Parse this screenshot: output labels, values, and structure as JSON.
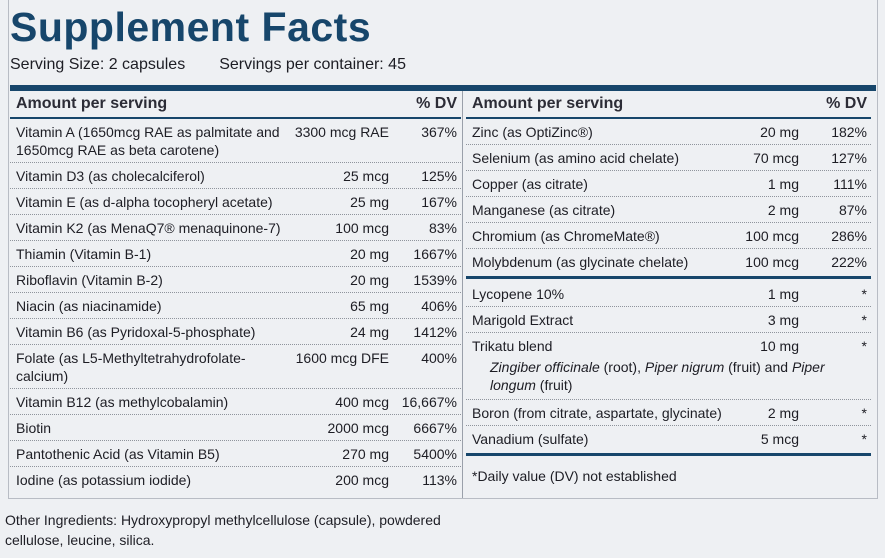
{
  "header": {
    "title": "Supplement Facts",
    "serving_size": "Serving Size:  2 capsules",
    "servings_per_container": "Servings per container:  45"
  },
  "left_column": {
    "headers": [
      "Amount per serving",
      "% DV"
    ],
    "rows": [
      {
        "name": "Vitamin A (1650mcg RAE as palmitate and 1650mcg RAE as beta carotene)",
        "amount": "3300 mcg RAE",
        "dv": "367%"
      },
      {
        "name": "Vitamin D3 (as cholecalciferol)",
        "amount": "25 mcg",
        "dv": "125%"
      },
      {
        "name": "Vitamin E (as d-alpha tocopheryl acetate)",
        "amount": "25 mg",
        "dv": "167%"
      },
      {
        "name": "Vitamin K2 (as MenaQ7® menaquinone-7)",
        "amount": "100 mcg",
        "dv": "83%"
      },
      {
        "name": "Thiamin (Vitamin B-1)",
        "amount": "20 mg",
        "dv": "1667%"
      },
      {
        "name": "Riboflavin (Vitamin B-2)",
        "amount": "20 mg",
        "dv": "1539%"
      },
      {
        "name": "Niacin (as niacinamide)",
        "amount": "65 mg",
        "dv": "406%"
      },
      {
        "name": "Vitamin B6 (as Pyridoxal-5-phosphate)",
        "amount": "24 mg",
        "dv": "1412%"
      },
      {
        "name": "Folate (as L5-Methyltetrahydrofolate-calcium)",
        "amount": "1600 mcg DFE",
        "dv": "400%"
      },
      {
        "name": "Vitamin B12 (as methylcobalamin)",
        "amount": "400 mcg",
        "dv": "16,667%"
      },
      {
        "name": "Biotin",
        "amount": "2000 mcg",
        "dv": "6667%"
      },
      {
        "name": "Pantothenic Acid (as Vitamin B5)",
        "amount": "270 mg",
        "dv": "5400%"
      },
      {
        "name": "Iodine (as potassium iodide)",
        "amount": "200 mcg",
        "dv": "113%"
      }
    ]
  },
  "right_column": {
    "headers": [
      "Amount per serving",
      "% DV"
    ],
    "groups": [
      [
        {
          "name": "Zinc (as OptiZinc®)",
          "amount": "20 mg",
          "dv": "182%"
        },
        {
          "name": "Selenium (as amino acid chelate)",
          "amount": "70 mcg",
          "dv": "127%"
        },
        {
          "name": "Copper (as citrate)",
          "amount": "1 mg",
          "dv": "111%"
        },
        {
          "name": "Manganese (as citrate)",
          "amount": "2 mg",
          "dv": "87%"
        },
        {
          "name": "Chromium (as ChromeMate®)",
          "amount": "100 mcg",
          "dv": "286%"
        },
        {
          "name": "Molybdenum (as glycinate chelate)",
          "amount": "100 mcg",
          "dv": "222%"
        }
      ],
      [
        {
          "name": "Lycopene 10%",
          "amount": "1 mg",
          "dv": "*"
        },
        {
          "name": "Marigold Extract",
          "amount": "3 mg",
          "dv": "*"
        },
        {
          "name": "Trikatu blend",
          "amount": "10 mg",
          "dv": "*",
          "description": [
            {
              "text": "Zingiber officinale",
              "italic": true
            },
            {
              "text": " (root), ",
              "italic": false
            },
            {
              "text": "Piper nigrum",
              "italic": true
            },
            {
              "text": " (fruit) and ",
              "italic": false
            },
            {
              "text": "Piper longum",
              "italic": true
            },
            {
              "text": " (fruit)",
              "italic": false
            }
          ]
        },
        {
          "name": "Boron (from citrate, aspartate, glycinate)",
          "amount": "2 mg",
          "dv": "*"
        },
        {
          "name": "Vanadium (sulfate)",
          "amount": "5 mcg",
          "dv": "*"
        }
      ]
    ],
    "footnote": "*Daily value (DV) not established"
  },
  "other_ingredients": "Other Ingredients: Hydroxypropyl methylcellulose (capsule), powdered cellulose, leucine, silica."
}
